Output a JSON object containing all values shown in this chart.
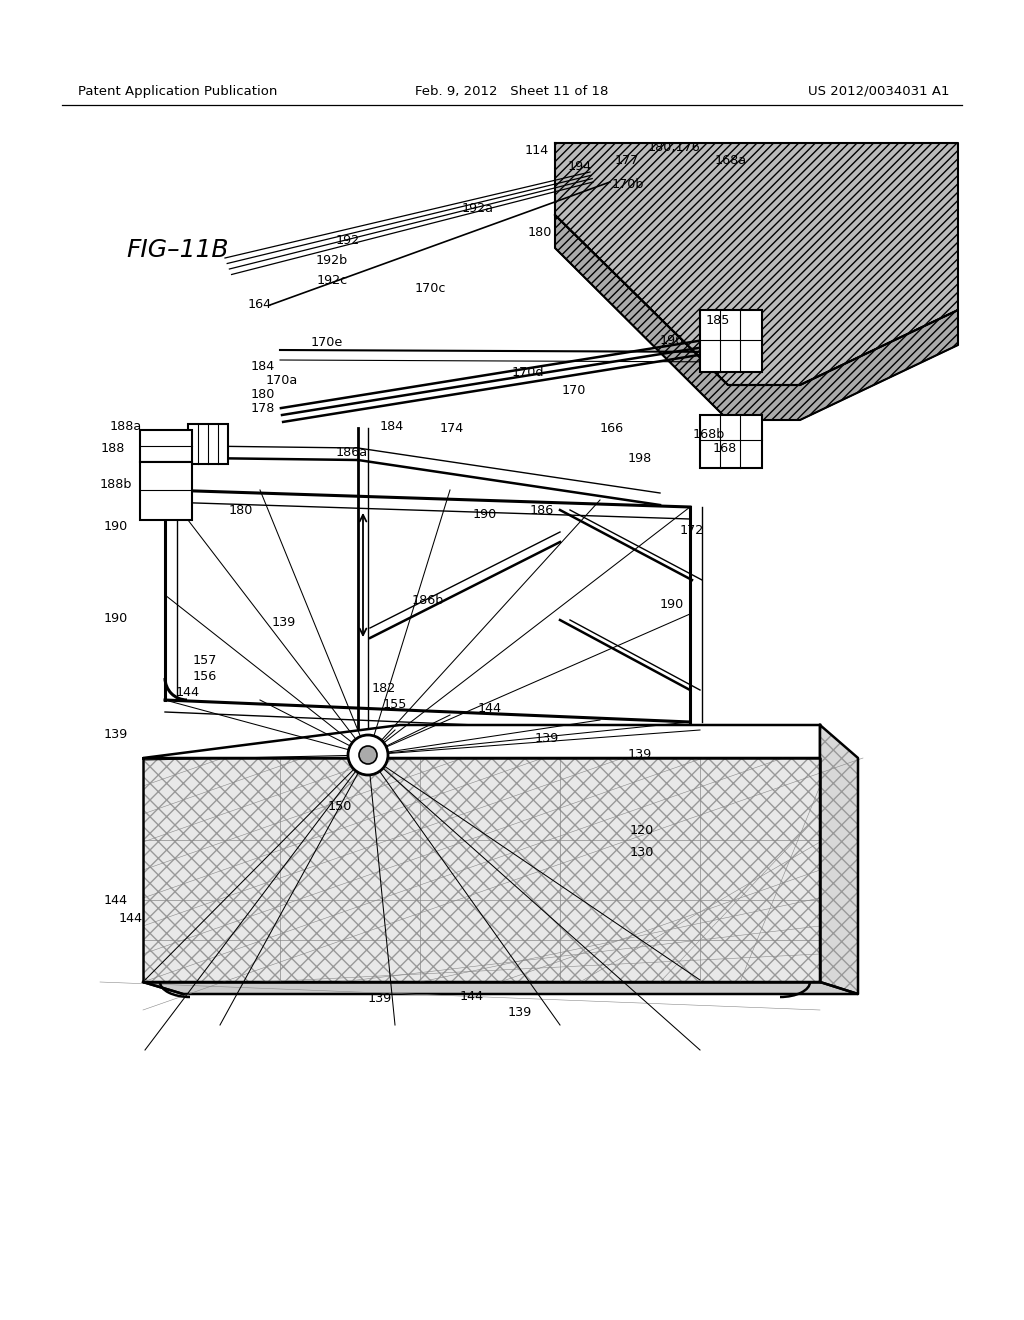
{
  "header_left": "Patent Application Publication",
  "header_mid": "Feb. 9, 2012   Sheet 11 of 18",
  "header_right": "US 2012/0034031 A1",
  "fig_label": "FIG–11B",
  "bg": "#ffffff"
}
